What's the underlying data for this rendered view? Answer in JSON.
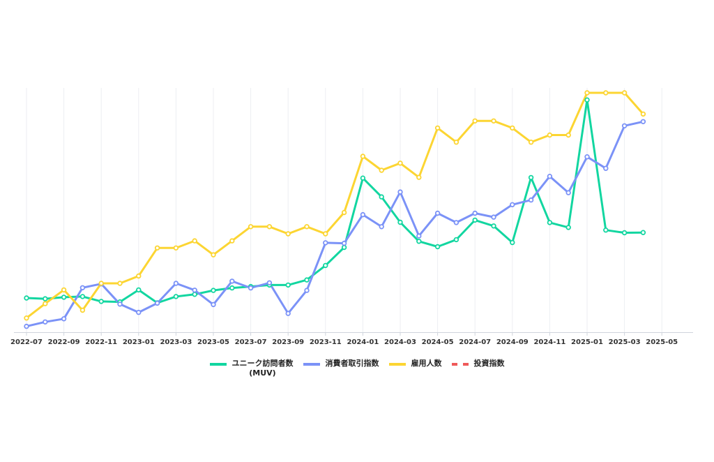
{
  "chart_data": {
    "type": "line",
    "title": "",
    "xlabel": "",
    "ylabel": "",
    "x_tick_labels": [
      "2022-07",
      "2022-09",
      "2022-11",
      "2023-01",
      "2023-03",
      "2023-05",
      "2023-07",
      "2023-09",
      "2023-11",
      "2024-01",
      "2024-03",
      "2024-05",
      "2024-07",
      "2024-09",
      "2024-11",
      "2025-01",
      "2025-03",
      "2025-05"
    ],
    "x_months": [
      "2022-07",
      "2022-08",
      "2022-09",
      "2022-10",
      "2022-11",
      "2022-12",
      "2023-01",
      "2023-02",
      "2023-03",
      "2023-04",
      "2023-05",
      "2023-06",
      "2023-07",
      "2023-08",
      "2023-09",
      "2023-10",
      "2023-11",
      "2023-12",
      "2024-01",
      "2024-02",
      "2024-03",
      "2024-04",
      "2024-05",
      "2024-06",
      "2024-07",
      "2024-08",
      "2024-09",
      "2024-10",
      "2024-11",
      "2024-12",
      "2025-01",
      "2025-02",
      "2025-03",
      "2025-04"
    ],
    "ylim": [
      0,
      100
    ],
    "grid": "vertical",
    "legend_position": "bottom",
    "series": [
      {
        "name": "ユニーク訪問者数 (MUV)",
        "name_lines": [
          "ユニーク訪問者数",
          "(MUV)"
        ],
        "color": "#12d6a0",
        "style": "solid",
        "values": [
          14,
          13.7,
          14.3,
          14.6,
          12.6,
          12.4,
          17.3,
          12,
          14.6,
          15.5,
          17.1,
          18.1,
          18.7,
          19.3,
          19.3,
          21.4,
          27.3,
          34.7,
          63.1,
          55.4,
          45,
          37.2,
          35,
          37.9,
          45.9,
          43.5,
          36.7,
          63.3,
          44.9,
          42.9,
          95.1,
          41.8,
          40.7,
          40.8
        ]
      },
      {
        "name": "消費者取引指数",
        "name_lines": [
          "消費者取引指数"
        ],
        "color": "#7b92f7",
        "style": "solid",
        "values": [
          2.4,
          4.2,
          5.5,
          18.2,
          19.8,
          11.5,
          8.1,
          11.9,
          20,
          17.2,
          11.3,
          20.9,
          18.1,
          20.2,
          7.7,
          17.1,
          36.6,
          36.4,
          48.1,
          43.2,
          57.4,
          39.4,
          48.7,
          44.9,
          48.7,
          47.1,
          52.2,
          54.1,
          63.8,
          57.1,
          71.8,
          67.1,
          84.5,
          86.2
        ]
      },
      {
        "name": "雇用人数",
        "name_lines": [
          "雇用人数"
        ],
        "color": "#fcd532",
        "style": "solid",
        "values": [
          5.8,
          11.7,
          17.3,
          9,
          20,
          20,
          23,
          34.5,
          34.5,
          37.4,
          31.7,
          37.4,
          43.2,
          43.2,
          40.3,
          43.2,
          40.3,
          49,
          72,
          66.3,
          69.2,
          63.4,
          83.6,
          77.8,
          86.5,
          86.5,
          83.6,
          77.8,
          80.7,
          80.7,
          98,
          98,
          98,
          89.3
        ]
      },
      {
        "name": "投資指数",
        "name_lines": [
          "投資指数"
        ],
        "color": "#ef5a5a",
        "style": "dashed",
        "values": []
      }
    ]
  }
}
